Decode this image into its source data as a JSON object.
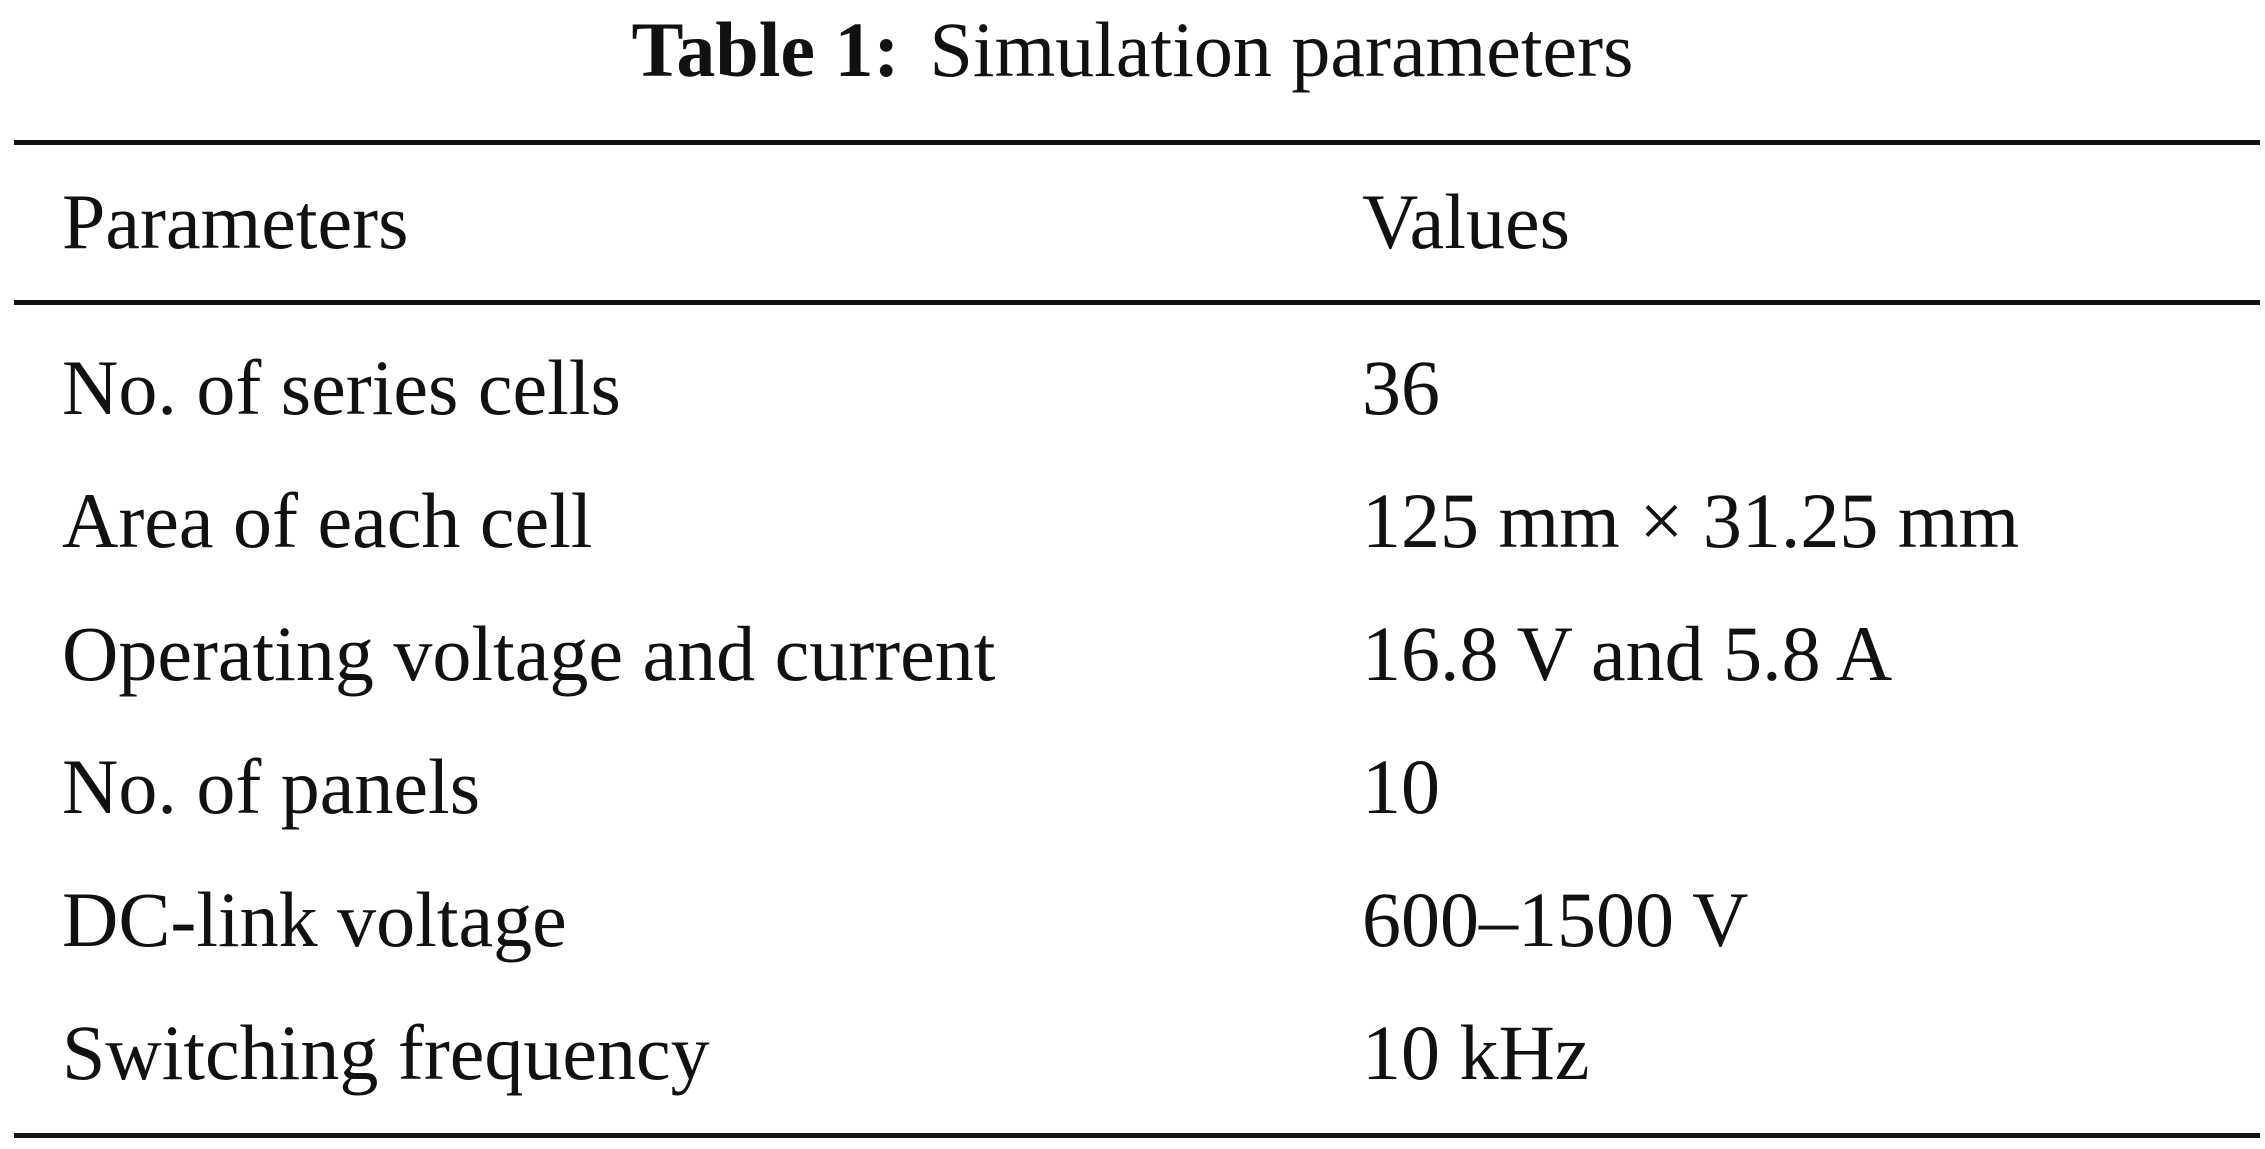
{
  "caption": {
    "label": "Table 1:",
    "title": "Simulation parameters"
  },
  "table": {
    "headers": [
      "Parameters",
      "Values"
    ],
    "rows": [
      [
        "No. of series cells",
        "36"
      ],
      [
        "Area of each cell",
        "125 mm × 31.25 mm"
      ],
      [
        "Operating voltage and current",
        "16.8 V and 5.8 A"
      ],
      [
        "No. of panels",
        "10"
      ],
      [
        "DC-link voltage",
        "600–1500 V"
      ],
      [
        "Switching frequency",
        "10 kHz"
      ]
    ]
  }
}
